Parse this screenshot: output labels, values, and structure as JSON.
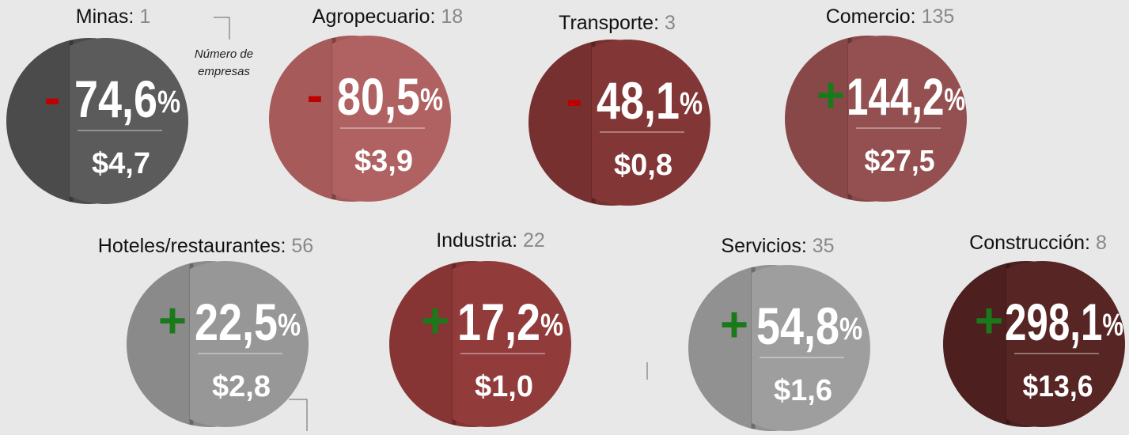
{
  "annotation": "Número de empresas",
  "items": [
    {
      "name": "Minas:",
      "count": "1",
      "sign": "-",
      "percent": "74,6",
      "unit": "%",
      "amount": "$4,7",
      "back": "#4b4b4b",
      "front": "#5b5b5b"
    },
    {
      "name": "Agropecuario:",
      "count": "18",
      "sign": "-",
      "percent": "80,5",
      "unit": "%",
      "amount": "$3,9",
      "back": "#a65a5a",
      "front": "#b06262"
    },
    {
      "name": "Transporte:",
      "count": "3",
      "sign": "-",
      "percent": "48,1",
      "unit": "%",
      "amount": "$0,8",
      "back": "#773030",
      "front": "#823636"
    },
    {
      "name": "Comercio:",
      "count": "135",
      "sign": "+",
      "percent": "144,2",
      "unit": "%",
      "amount": "$27,5",
      "back": "#894848",
      "front": "#945050"
    },
    {
      "name": "Hoteles/restaurantes:",
      "count": "56",
      "sign": "+",
      "percent": "22,5",
      "unit": "%",
      "amount": "$2,8",
      "back": "#8a8a8a",
      "front": "#979797"
    },
    {
      "name": "Industria:",
      "count": "22",
      "sign": "+",
      "percent": "17,2",
      "unit": "%",
      "amount": "$1,0",
      "back": "#873434",
      "front": "#923b3b"
    },
    {
      "name": "Servicios:",
      "count": "35",
      "sign": "+",
      "percent": "54,8",
      "unit": "%",
      "amount": "$1,6",
      "back": "#919191",
      "front": "#9e9e9e"
    },
    {
      "name": "Construcción:",
      "count": "8",
      "sign": "+",
      "percent": "298,1",
      "unit": "%",
      "amount": "$13,6",
      "back": "#4d1f1f",
      "front": "#582525"
    }
  ]
}
